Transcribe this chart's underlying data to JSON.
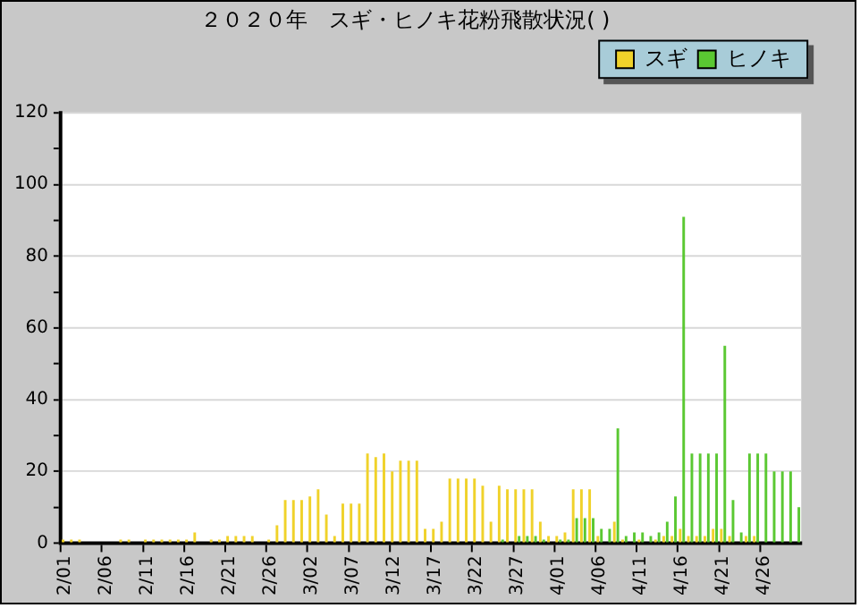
{
  "chart_data": {
    "type": "bar",
    "title": "２０２０年　スギ・ヒノキ花粉飛散状況( )",
    "categories": [
      "2/01",
      null,
      null,
      null,
      null,
      "2/06",
      null,
      null,
      null,
      null,
      "2/11",
      null,
      null,
      null,
      null,
      "2/16",
      null,
      null,
      null,
      null,
      "2/21",
      null,
      null,
      null,
      null,
      "2/26",
      null,
      null,
      null,
      null,
      "3/02",
      null,
      null,
      null,
      null,
      "3/07",
      null,
      null,
      null,
      null,
      "3/12",
      null,
      null,
      null,
      null,
      "3/17",
      null,
      null,
      null,
      null,
      "3/22",
      null,
      null,
      null,
      null,
      "3/27",
      null,
      null,
      null,
      null,
      "4/01",
      null,
      null,
      null,
      null,
      "4/06",
      null,
      null,
      null,
      null,
      "4/11",
      null,
      null,
      null,
      null,
      "4/16",
      null,
      null,
      null,
      null,
      "4/21",
      null,
      null,
      null,
      null,
      "4/26",
      null,
      null,
      null,
      null
    ],
    "series": [
      {
        "name": "スギ",
        "color": "#f0d22a",
        "values": [
          1,
          1,
          1,
          0,
          0,
          0,
          0,
          1,
          1,
          0,
          1,
          1,
          1,
          1,
          1,
          1,
          3,
          0,
          1,
          1,
          2,
          2,
          2,
          2,
          0,
          1,
          5,
          12,
          12,
          12,
          13,
          15,
          8,
          2,
          11,
          11,
          11,
          25,
          24,
          25,
          20,
          23,
          23,
          23,
          4,
          4,
          6,
          18,
          18,
          18,
          18,
          16,
          6,
          16,
          15,
          15,
          15,
          15,
          6,
          2,
          2,
          3,
          15,
          15,
          15,
          2,
          0,
          6,
          1,
          0,
          1,
          0,
          1,
          2,
          2,
          4,
          2,
          2,
          2,
          4,
          4,
          2,
          0,
          2,
          2,
          0,
          0,
          0,
          0,
          0
        ]
      },
      {
        "name": "ヒノキ",
        "color": "#5ac832",
        "values": [
          0,
          0,
          0,
          0,
          0,
          0,
          0,
          0,
          0,
          0,
          0,
          0,
          0,
          0,
          0,
          0,
          0,
          0,
          0,
          0,
          0,
          0,
          0,
          0,
          0,
          0,
          0,
          0,
          0,
          0,
          0,
          0,
          0,
          0,
          0,
          0,
          0,
          0,
          0,
          0,
          0,
          0,
          0,
          0,
          0,
          0,
          0,
          0,
          0,
          0,
          0,
          0,
          0,
          1,
          0,
          2,
          2,
          2,
          1,
          0,
          1,
          1,
          7,
          7,
          7,
          4,
          4,
          32,
          2,
          3,
          3,
          2,
          3,
          6,
          13,
          91,
          25,
          25,
          25,
          25,
          55,
          12,
          3,
          25,
          25,
          25,
          20,
          20,
          20,
          10
        ]
      }
    ],
    "ylim": [
      0,
      120
    ],
    "yticks": [
      0,
      {
        "value": 10,
        "label": null
      },
      20,
      {
        "value": 30,
        "label": null
      },
      40,
      {
        "value": 50,
        "label": null
      },
      60,
      {
        "value": 70,
        "label": null
      },
      80,
      {
        "value": 90,
        "label": null
      },
      100,
      {
        "value": 110,
        "label": null
      },
      120
    ],
    "grid": "y",
    "legend": "top right"
  }
}
